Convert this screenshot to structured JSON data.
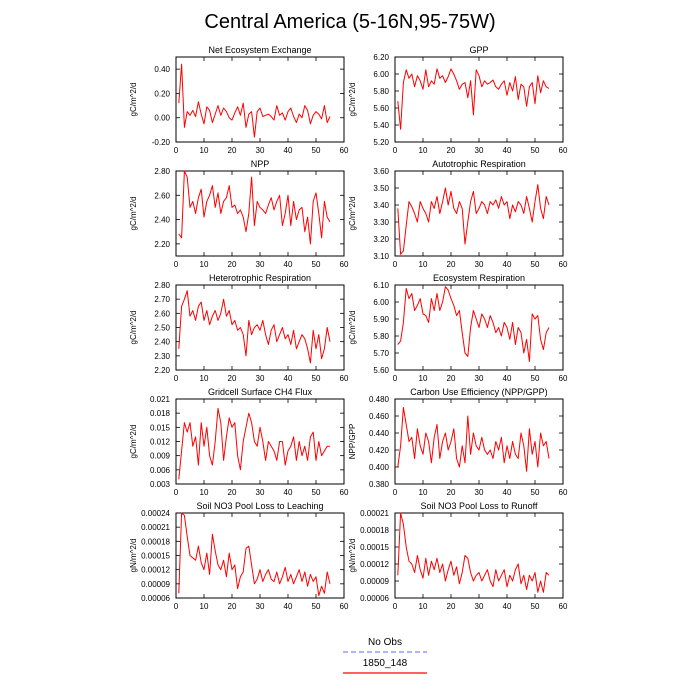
{
  "page": {
    "title": "Central America (5-16N,95-75W)"
  },
  "legend": {
    "entries": [
      {
        "label": "No Obs",
        "color": "#9999ff",
        "dashed": true
      },
      {
        "label": "1850_148",
        "color": "#ff0000",
        "dashed": false
      }
    ]
  },
  "colors": {
    "series": "#ff0000",
    "obs": "#9999ff"
  },
  "chart_data": [
    {
      "type": "line",
      "title": "Net Ecosystem Exchange",
      "xlabel": "",
      "ylabel": "gC/m^2/d",
      "xlim": [
        0,
        60
      ],
      "xticks": [
        0,
        10,
        20,
        30,
        40,
        50,
        60
      ],
      "ylim": [
        -0.2,
        0.5
      ],
      "yticks": [
        "-0.20",
        "0.00",
        "0.20",
        "0.40"
      ],
      "series": [
        {
          "name": "1850_148",
          "values": [
            0.12,
            0.44,
            -0.08,
            0.05,
            0.02,
            0.06,
            0.01,
            0.13,
            0.03,
            -0.05,
            0.09,
            0.06,
            -0.04,
            0.03,
            0.1,
            0.02,
            0.08,
            0.05,
            0.0,
            -0.02,
            0.04,
            0.09,
            0.02,
            0.12,
            -0.08,
            0.03,
            0.05,
            -0.16,
            0.05,
            0.08,
            0.01,
            0.02,
            0.03,
            0.01,
            -0.02,
            0.1,
            0.02,
            0.04,
            -0.02,
            0.05,
            0.08,
            0.01,
            -0.04,
            0.03,
            0.0,
            0.1,
            0.06,
            -0.05,
            0.02,
            0.05,
            0.03,
            -0.01,
            0.1,
            -0.04,
            0.01
          ]
        }
      ]
    },
    {
      "type": "line",
      "title": "GPP",
      "xlabel": "",
      "ylabel": "gC/m^2/d",
      "xlim": [
        0,
        60
      ],
      "xticks": [
        0,
        10,
        20,
        30,
        40,
        50,
        60
      ],
      "ylim": [
        5.2,
        6.2
      ],
      "yticks": [
        "5.20",
        "5.40",
        "5.60",
        "5.80",
        "6.00",
        "6.20"
      ],
      "series": [
        {
          "name": "1850_148",
          "values": [
            5.68,
            5.35,
            5.9,
            6.05,
            5.95,
            6.0,
            5.85,
            5.98,
            5.92,
            5.82,
            6.05,
            5.85,
            5.92,
            5.88,
            6.06,
            5.95,
            5.98,
            5.9,
            5.97,
            6.06,
            6.0,
            5.92,
            5.82,
            5.88,
            5.9,
            5.72,
            5.92,
            5.52,
            6.05,
            5.98,
            5.85,
            5.92,
            5.88,
            5.9,
            5.93,
            5.85,
            5.82,
            5.88,
            5.92,
            5.75,
            5.9,
            5.8,
            5.97,
            5.7,
            5.88,
            5.85,
            5.62,
            5.85,
            5.9,
            5.65,
            5.98,
            5.78,
            5.92,
            5.85,
            5.83
          ]
        }
      ]
    },
    {
      "type": "line",
      "title": "NPP",
      "xlabel": "",
      "ylabel": "gC/m^2/d",
      "xlim": [
        0,
        60
      ],
      "xticks": [
        0,
        10,
        20,
        30,
        40,
        50,
        60
      ],
      "ylim": [
        2.1,
        2.8
      ],
      "yticks": [
        "2.20",
        "2.40",
        "2.60",
        "2.80"
      ],
      "series": [
        {
          "name": "1850_148",
          "values": [
            2.28,
            2.25,
            2.8,
            2.75,
            2.5,
            2.55,
            2.45,
            2.58,
            2.65,
            2.42,
            2.55,
            2.6,
            2.68,
            2.5,
            2.62,
            2.45,
            2.55,
            2.58,
            2.68,
            2.5,
            2.52,
            2.45,
            2.48,
            2.42,
            2.3,
            2.45,
            2.75,
            2.35,
            2.55,
            2.5,
            2.48,
            2.45,
            2.52,
            2.58,
            2.48,
            2.55,
            2.6,
            2.35,
            2.45,
            2.6,
            2.35,
            2.55,
            2.4,
            2.48,
            2.5,
            2.3,
            2.42,
            2.2,
            2.55,
            2.62,
            2.45,
            2.25,
            2.55,
            2.42,
            2.38
          ]
        }
      ]
    },
    {
      "type": "line",
      "title": "Autotrophic Respiration",
      "xlabel": "",
      "ylabel": "gC/m^2/d",
      "xlim": [
        0,
        60
      ],
      "xticks": [
        0,
        10,
        20,
        30,
        40,
        50,
        60
      ],
      "ylim": [
        3.1,
        3.6
      ],
      "yticks": [
        "3.10",
        "3.20",
        "3.30",
        "3.40",
        "3.50",
        "3.60"
      ],
      "series": [
        {
          "name": "1850_148",
          "values": [
            3.38,
            3.11,
            3.13,
            3.28,
            3.42,
            3.39,
            3.35,
            3.3,
            3.42,
            3.38,
            3.35,
            3.3,
            3.42,
            3.38,
            3.45,
            3.35,
            3.42,
            3.5,
            3.4,
            3.48,
            3.38,
            3.35,
            3.42,
            3.38,
            3.17,
            3.3,
            3.42,
            3.48,
            3.35,
            3.38,
            3.42,
            3.4,
            3.35,
            3.42,
            3.4,
            3.43,
            3.38,
            3.45,
            3.4,
            3.42,
            3.32,
            3.4,
            3.36,
            3.42,
            3.4,
            3.35,
            3.45,
            3.38,
            3.3,
            3.42,
            3.52,
            3.38,
            3.32,
            3.45,
            3.4
          ]
        }
      ]
    },
    {
      "type": "line",
      "title": "Heterotrophic Respiration",
      "xlabel": "",
      "ylabel": "gC/m^2/d",
      "xlim": [
        0,
        60
      ],
      "xticks": [
        0,
        10,
        20,
        30,
        40,
        50,
        60
      ],
      "ylim": [
        2.2,
        2.8
      ],
      "yticks": [
        "2.20",
        "2.30",
        "2.40",
        "2.50",
        "2.60",
        "2.70",
        "2.80"
      ],
      "series": [
        {
          "name": "1850_148",
          "values": [
            2.35,
            2.65,
            2.7,
            2.76,
            2.58,
            2.62,
            2.55,
            2.65,
            2.68,
            2.55,
            2.62,
            2.52,
            2.58,
            2.62,
            2.55,
            2.6,
            2.7,
            2.58,
            2.62,
            2.52,
            2.55,
            2.48,
            2.5,
            2.45,
            2.3,
            2.55,
            2.45,
            2.5,
            2.52,
            2.48,
            2.55,
            2.45,
            2.38,
            2.48,
            2.52,
            2.4,
            2.45,
            2.5,
            2.42,
            2.45,
            2.38,
            2.48,
            2.35,
            2.4,
            2.45,
            2.42,
            2.35,
            2.25,
            2.48,
            2.35,
            2.45,
            2.28,
            2.35,
            2.5,
            2.4
          ]
        }
      ]
    },
    {
      "type": "line",
      "title": "Ecosystem Respiration",
      "xlabel": "",
      "ylabel": "gC/m^2/d",
      "xlim": [
        0,
        60
      ],
      "xticks": [
        0,
        10,
        20,
        30,
        40,
        50,
        60
      ],
      "ylim": [
        5.6,
        6.1
      ],
      "yticks": [
        "5.60",
        "5.70",
        "5.80",
        "5.90",
        "6.00",
        "6.10"
      ],
      "series": [
        {
          "name": "1850_148",
          "values": [
            5.75,
            5.77,
            5.88,
            6.08,
            6.02,
            6.05,
            5.95,
            5.98,
            6.02,
            5.93,
            5.92,
            5.88,
            6.02,
            5.95,
            6.05,
            5.95,
            6.0,
            6.09,
            6.07,
            6.02,
            5.98,
            5.92,
            5.95,
            5.82,
            5.7,
            5.68,
            5.85,
            5.95,
            5.9,
            5.85,
            5.93,
            5.9,
            5.85,
            5.92,
            5.88,
            5.82,
            5.85,
            5.8,
            5.88,
            5.85,
            5.78,
            5.88,
            5.75,
            5.85,
            5.82,
            5.7,
            5.78,
            5.65,
            5.93,
            5.9,
            5.92,
            5.78,
            5.72,
            5.82,
            5.85
          ]
        }
      ]
    },
    {
      "type": "line",
      "title": "Gridcell Surface CH4 Flux",
      "xlabel": "",
      "ylabel": "gC/m^2/d",
      "xlim": [
        0,
        60
      ],
      "xticks": [
        0,
        10,
        20,
        30,
        40,
        50,
        60
      ],
      "ylim": [
        0.003,
        0.021
      ],
      "yticks": [
        "0.003",
        "0.006",
        "0.009",
        "0.012",
        "0.015",
        "0.018",
        "0.021"
      ],
      "series": [
        {
          "name": "1850_148",
          "values": [
            0.004,
            0.01,
            0.016,
            0.014,
            0.016,
            0.011,
            0.013,
            0.007,
            0.016,
            0.011,
            0.015,
            0.009,
            0.007,
            0.012,
            0.019,
            0.016,
            0.008,
            0.013,
            0.017,
            0.015,
            0.016,
            0.009,
            0.006,
            0.012,
            0.015,
            0.018,
            0.016,
            0.012,
            0.011,
            0.015,
            0.012,
            0.008,
            0.012,
            0.011,
            0.01,
            0.008,
            0.012,
            0.012,
            0.007,
            0.01,
            0.011,
            0.013,
            0.008,
            0.012,
            0.009,
            0.011,
            0.008,
            0.013,
            0.014,
            0.008,
            0.012,
            0.009,
            0.01,
            0.011,
            0.011
          ]
        }
      ]
    },
    {
      "type": "line",
      "title": "Carbon Use Efficiency (NPP/GPP)",
      "xlabel": "",
      "ylabel": "NPP/GPP",
      "xlim": [
        0,
        60
      ],
      "xticks": [
        0,
        10,
        20,
        30,
        40,
        50,
        60
      ],
      "ylim": [
        0.38,
        0.48
      ],
      "yticks": [
        "0.380",
        "0.400",
        "0.420",
        "0.440",
        "0.460",
        "0.480"
      ],
      "series": [
        {
          "name": "1850_148",
          "values": [
            0.4,
            0.425,
            0.47,
            0.45,
            0.43,
            0.435,
            0.41,
            0.445,
            0.425,
            0.415,
            0.44,
            0.43,
            0.405,
            0.435,
            0.45,
            0.41,
            0.43,
            0.44,
            0.42,
            0.43,
            0.445,
            0.41,
            0.4,
            0.425,
            0.405,
            0.46,
            0.415,
            0.44,
            0.425,
            0.42,
            0.435,
            0.42,
            0.415,
            0.42,
            0.41,
            0.43,
            0.42,
            0.435,
            0.405,
            0.425,
            0.41,
            0.43,
            0.415,
            0.41,
            0.44,
            0.425,
            0.395,
            0.445,
            0.415,
            0.43,
            0.4,
            0.44,
            0.425,
            0.43,
            0.41
          ]
        }
      ]
    },
    {
      "type": "line",
      "title": "Soil NO3 Pool Loss to Leaching",
      "xlabel": "",
      "ylabel": "gN/m^2/d",
      "xlim": [
        0,
        60
      ],
      "xticks": [
        0,
        10,
        20,
        30,
        40,
        50,
        60
      ],
      "ylim": [
        6e-05,
        0.00024
      ],
      "yticks": [
        "0.00006",
        "0.00009",
        "0.00012",
        "0.00015",
        "0.00018",
        "0.00021",
        "0.00024"
      ],
      "series": [
        {
          "name": "1850_148",
          "values": [
            7e-05,
            0.00024,
            0.000235,
            0.00019,
            0.00015,
            0.000145,
            0.00014,
            0.00017,
            0.000135,
            0.00012,
            0.000155,
            0.00011,
            0.000195,
            0.00016,
            0.00013,
            0.00012,
            0.00014,
            0.000105,
            0.000155,
            0.00012,
            0.00013,
            8e-05,
            0.000105,
            0.000115,
            0.000165,
            0.00017,
            0.00013,
            9e-05,
            0.0001,
            0.00012,
            9.5e-05,
            0.00011,
            0.00012,
            0.0001,
            9.5e-05,
            0.000115,
            9e-05,
            0.000105,
            0.000125,
            9.5e-05,
            0.00011,
            9e-05,
            0.000105,
            0.00012,
            9.5e-05,
            0.000115,
            8.5e-05,
            0.00011,
            9.5e-05,
            0.000105,
            6.5e-05,
            8.5e-05,
            7e-05,
            0.000115,
            9e-05
          ]
        }
      ]
    },
    {
      "type": "line",
      "title": "Soil NO3 Pool Loss to Runoff",
      "xlabel": "",
      "ylabel": "gN/m^2/d",
      "xlim": [
        0,
        60
      ],
      "xticks": [
        0,
        10,
        20,
        30,
        40,
        50,
        60
      ],
      "ylim": [
        6e-05,
        0.00021
      ],
      "yticks": [
        "0.00006",
        "0.00009",
        "0.00012",
        "0.00015",
        "0.00018",
        "0.00021"
      ],
      "series": [
        {
          "name": "1850_148",
          "values": [
            0.0001,
            0.00021,
            0.00019,
            0.00015,
            0.000125,
            0.00012,
            0.000105,
            0.000135,
            0.00011,
            9.5e-05,
            0.00013,
            0.0001,
            0.000125,
            0.00011,
            0.00013,
            0.000105,
            0.00012,
            9e-05,
            0.00011,
            0.000125,
            0.0001,
            0.000115,
            8.5e-05,
            0.000105,
            0.000135,
            0.00013,
            0.000105,
            9e-05,
            0.0001,
            0.000105,
            9e-05,
            0.0001,
            0.00011,
            9e-05,
            8e-05,
            0.00011,
            9e-05,
            0.0001,
            0.00011,
            8e-05,
            0.0001,
            9e-05,
            0.00011,
            0.00012,
            8.5e-05,
            0.0001,
            7.5e-05,
            0.0001,
            9e-05,
            0.000105,
            7e-05,
            9e-05,
            7e-05,
            0.000105,
            0.0001
          ]
        }
      ]
    }
  ]
}
